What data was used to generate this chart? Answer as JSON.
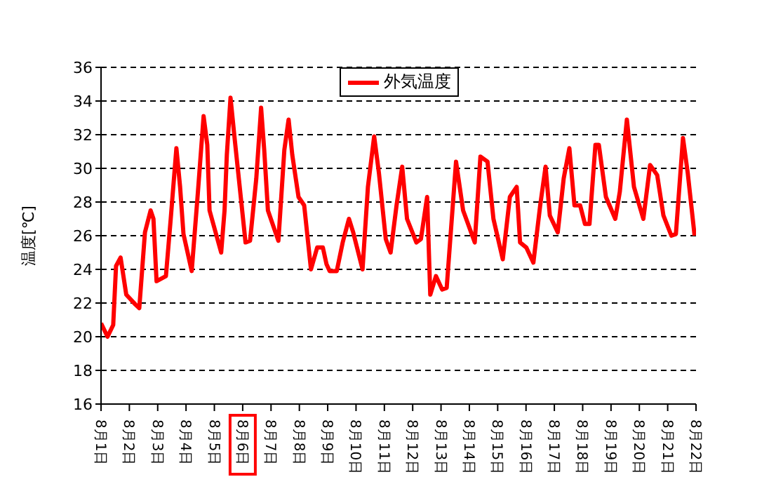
{
  "chart_data": {
    "type": "line",
    "ylabel": "温度[℃]",
    "x": [
      "--08-01T00:00",
      "--08-01T05:31",
      "--08-01T10:19",
      "--08-01T12:43",
      "--08-01T16:34",
      "--08-01T21:22",
      "--08-02T05:17",
      "--08-02T08:24",
      "--08-02T13:12",
      "--08-02T18:00",
      "--08-02T20:24",
      "--08-02T23:02",
      "--08-03T06:58",
      "--08-03T11:02",
      "--08-03T15:50",
      "--08-03T18:58",
      "--08-03T21:50",
      "--08-04T04:48",
      "--08-04T10:05",
      "--08-04T14:53",
      "--08-04T18:00",
      "--08-04T19:55",
      "--08-05T05:46",
      "--08-05T08:38",
      "--08-05T10:34",
      "--08-05T13:41",
      "--08-05T17:17",
      "--08-06T02:24",
      "--08-06T06:14",
      "--08-06T11:31",
      "--08-06T15:36",
      "--08-06T18:14",
      "--08-06T21:22",
      "--08-07T06:14",
      "--08-07T11:17",
      "--08-07T14:53",
      "--08-07T18:00",
      "--08-07T23:17",
      "--08-08T04:05",
      "--08-08T09:50",
      "--08-08T15:07",
      "--08-08T19:55",
      "--08-08T23:02",
      "--08-09T01:41",
      "--08-09T07:41",
      "--08-09T12:43",
      "--08-09T18:00",
      "--08-09T21:36",
      "--08-10T05:31",
      "--08-10T10:05",
      "--08-10T15:22",
      "--08-10T19:26",
      "--08-11T01:12",
      "--08-11T05:17",
      "--08-11T10:19",
      "--08-11T15:07",
      "--08-11T19:12",
      "--08-12T03:07",
      "--08-12T06:58",
      "--08-12T12:14",
      "--08-12T14:53",
      "--08-12T19:41",
      "--08-13T00:58",
      "--08-13T04:48",
      "--08-13T12:43",
      "--08-13T18:43",
      "--08-14T04:34",
      "--08-14T09:22",
      "--08-14T15:22",
      "--08-14T20:24",
      "--08-15T04:19",
      "--08-15T10:19",
      "--08-15T16:05",
      "--08-15T18:58",
      "--08-16T00:14",
      "--08-16T06:14",
      "--08-16T12:00",
      "--08-16T16:34",
      "--08-16T20:10",
      "--08-17T02:53",
      "--08-17T07:55",
      "--08-17T12:43",
      "--08-17T17:02",
      "--08-17T21:50",
      "--08-18T01:55",
      "--08-18T05:46",
      "--08-18T10:48",
      "--08-18T13:41",
      "--08-18T19:41",
      "--08-19T03:36",
      "--08-19T07:26",
      "--08-19T13:26",
      "--08-19T19:26",
      "--08-20T03:22",
      "--08-20T09:07",
      "--08-20T15:07",
      "--08-20T20:24",
      "--08-21T03:07",
      "--08-21T06:58",
      "--08-21T12:58",
      "--08-21T17:02",
      "--08-21T22:48"
    ],
    "series": [
      {
        "name": "外気温度",
        "color": "#ff0000",
        "values": [
          20.8,
          20.0,
          20.7,
          24.2,
          24.7,
          22.5,
          21.9,
          21.7,
          26.2,
          27.5,
          27.0,
          23.3,
          23.6,
          27.0,
          31.2,
          28.9,
          26.1,
          23.9,
          28.6,
          33.1,
          31.4,
          27.5,
          25.0,
          27.5,
          30.8,
          34.2,
          31.7,
          25.6,
          25.7,
          29.4,
          33.6,
          31.1,
          27.5,
          25.7,
          31.1,
          32.9,
          30.8,
          28.3,
          27.8,
          24.0,
          25.3,
          25.3,
          24.3,
          23.9,
          23.9,
          25.6,
          27.0,
          26.2,
          24.0,
          28.9,
          31.9,
          29.7,
          25.8,
          25.0,
          27.8,
          30.1,
          27.0,
          25.6,
          25.8,
          28.3,
          22.5,
          23.6,
          22.8,
          22.9,
          30.4,
          27.5,
          25.6,
          30.7,
          30.4,
          27.0,
          24.6,
          28.3,
          28.9,
          25.6,
          25.3,
          24.4,
          27.8,
          30.1,
          27.2,
          26.2,
          29.4,
          31.2,
          27.8,
          27.8,
          26.7,
          26.7,
          31.4,
          31.4,
          28.3,
          27.0,
          28.6,
          32.9,
          28.9,
          27.0,
          30.2,
          29.6,
          27.2,
          26.0,
          26.1,
          31.8,
          29.7,
          26.0
        ]
      }
    ],
    "xlim": [
      "--08-01",
      "--08-22"
    ],
    "xticks": [
      {
        "value": "--08-01",
        "label": "8月1日"
      },
      {
        "value": "--08-02",
        "label": "8月2日"
      },
      {
        "value": "--08-03",
        "label": "8月3日"
      },
      {
        "value": "--08-04",
        "label": "8月4日"
      },
      {
        "value": "--08-05",
        "label": "8月5日"
      },
      {
        "value": "--08-06",
        "label": "8月6日"
      },
      {
        "value": "--08-07",
        "label": "8月7日"
      },
      {
        "value": "--08-08",
        "label": "8月8日"
      },
      {
        "value": "--08-09",
        "label": "8月9日"
      },
      {
        "value": "--08-10",
        "label": "8月10日"
      },
      {
        "value": "--08-11",
        "label": "8月11日"
      },
      {
        "value": "--08-12",
        "label": "8月12日"
      },
      {
        "value": "--08-13",
        "label": "8月13日"
      },
      {
        "value": "--08-14",
        "label": "8月14日"
      },
      {
        "value": "--08-15",
        "label": "8月15日"
      },
      {
        "value": "--08-16",
        "label": "8月16日"
      },
      {
        "value": "--08-17",
        "label": "8月17日"
      },
      {
        "value": "--08-18",
        "label": "8月18日"
      },
      {
        "value": "--08-19",
        "label": "8月19日"
      },
      {
        "value": "--08-20",
        "label": "8月20日"
      },
      {
        "value": "--08-21",
        "label": "8月21日"
      },
      {
        "value": "--08-22",
        "label": "8月22日"
      }
    ],
    "ylim": [
      16,
      36
    ],
    "yticks": [
      16,
      18,
      20,
      22,
      24,
      26,
      28,
      30,
      32,
      34,
      36
    ],
    "grid": "y",
    "legend": "top",
    "marker": "none",
    "line_style": "solid"
  }
}
